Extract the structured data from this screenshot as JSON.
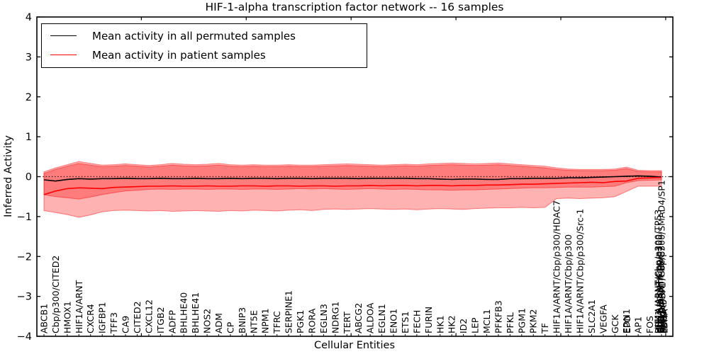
{
  "figure": {
    "title": "HIF-1-alpha transcription factor network -- 16 samples"
  },
  "axes": {
    "xlabel": "Cellular Entities",
    "ylabel": "Inferred Activity",
    "ylim": [
      -4,
      4
    ],
    "yticks": [
      "4",
      "3",
      "2",
      "1",
      "0",
      "−1",
      "−2",
      "−3",
      "−4"
    ],
    "ytick_values": [
      4,
      3,
      2,
      1,
      0,
      -1,
      -2,
      -3,
      -4
    ],
    "zero_line": "dotted"
  },
  "legend": {
    "items": [
      {
        "label": "Mean activity in all permuted samples",
        "color": "#000000"
      },
      {
        "label": "Mean activity in patient samples",
        "color": "#ff0000"
      }
    ]
  },
  "chart_data": {
    "type": "line",
    "title": "HIF-1-alpha transcription factor network -- 16 samples",
    "xlabel": "Cellular Entities",
    "ylabel": "Inferred Activity",
    "ylim": [
      -4,
      4
    ],
    "grid": false,
    "legend_position": "upper left",
    "band_color": "#ff0000",
    "band_alpha": 0.3,
    "categories": [
      "ABCB1",
      "Cbp/p300/CITED2",
      "HMOX1",
      "HIF1A/ARNT",
      "CXCR4",
      "IGFBP1",
      "TFF3",
      "CA9",
      "CITED2",
      "CXCL12",
      "ITGB2",
      "ADFP",
      "BHLHE40",
      "BHLHE41",
      "NOS2",
      "ADM",
      "CP",
      "BNIP3",
      "NT5E",
      "NPM1",
      "TFRC",
      "SERPINE1",
      "PGK1",
      "RORA",
      "EGLN3",
      "NDRG1",
      "TERT",
      "ABCG2",
      "ALDOA",
      "EGLN1",
      "ENO1",
      "ETS1",
      "FECH",
      "FURIN",
      "HK1",
      "HK2",
      "ID2",
      "LEP",
      "MCL1",
      "PFKFB3",
      "PFKL",
      "PGM1",
      "PKM2",
      "TF",
      "HIF1A/ARNT/Cbp/p300/HDAC7",
      "HIF1A/ARNT/Cbp/p300",
      "HIF1A/ARNT/Cbp/p300/Src-1",
      "SLC2A1",
      "VEGFA",
      "GCK",
      "EDN1",
      "AP1",
      "FOS",
      "HIF1A/ARNT/Cbp/p300/SMAD4/SP1"
    ],
    "overlapping_labels": [
      {
        "slot": 50,
        "label": "EPO"
      },
      {
        "slot": 53,
        "labels": [
          "HIF1A/ARNT/Cbp/p300/TP53",
          "HIF1A/ARNT/Cbp/p300",
          "Cbp/p300/HIF1A",
          "HIF1A/ARNT/HDAC7",
          "SMAD4/SP1",
          "SLC2A3",
          "LDHA",
          "PDK1",
          "EGR1",
          "PAI1"
        ]
      }
    ],
    "series": [
      {
        "name": "Mean activity in all permuted samples",
        "color": "#000000",
        "values": [
          -0.08,
          -0.11,
          -0.07,
          -0.05,
          -0.06,
          -0.05,
          -0.05,
          -0.04,
          -0.05,
          -0.05,
          -0.04,
          -0.05,
          -0.05,
          -0.04,
          -0.05,
          -0.05,
          -0.04,
          -0.05,
          -0.04,
          -0.04,
          -0.05,
          -0.04,
          -0.04,
          -0.05,
          -0.04,
          -0.04,
          -0.04,
          -0.05,
          -0.04,
          -0.04,
          -0.04,
          -0.04,
          -0.05,
          -0.05,
          -0.06,
          -0.07,
          -0.06,
          -0.06,
          -0.07,
          -0.07,
          -0.05,
          -0.05,
          -0.04,
          -0.04,
          -0.04,
          -0.03,
          -0.03,
          -0.02,
          -0.01,
          0.0,
          0.01,
          0.02,
          0.01,
          -0.01
        ]
      },
      {
        "name": "Mean activity in patient samples",
        "color": "#ff0000",
        "values": [
          -0.45,
          -0.36,
          -0.3,
          -0.28,
          -0.29,
          -0.3,
          -0.27,
          -0.26,
          -0.25,
          -0.24,
          -0.24,
          -0.23,
          -0.24,
          -0.24,
          -0.23,
          -0.24,
          -0.24,
          -0.23,
          -0.23,
          -0.24,
          -0.23,
          -0.23,
          -0.24,
          -0.23,
          -0.23,
          -0.24,
          -0.23,
          -0.23,
          -0.22,
          -0.23,
          -0.22,
          -0.22,
          -0.23,
          -0.22,
          -0.22,
          -0.23,
          -0.22,
          -0.22,
          -0.21,
          -0.21,
          -0.2,
          -0.19,
          -0.19,
          -0.18,
          -0.17,
          -0.16,
          -0.15,
          -0.14,
          -0.15,
          -0.12,
          -0.11,
          -0.04,
          -0.03,
          -0.02
        ]
      }
    ],
    "bands": [
      {
        "name": "patient-std-band",
        "top": [
          0.12,
          0.22,
          0.3,
          0.38,
          0.33,
          0.29,
          0.3,
          0.32,
          0.3,
          0.28,
          0.3,
          0.33,
          0.31,
          0.3,
          0.31,
          0.33,
          0.3,
          0.29,
          0.3,
          0.29,
          0.29,
          0.3,
          0.29,
          0.29,
          0.3,
          0.31,
          0.32,
          0.31,
          0.3,
          0.29,
          0.3,
          0.31,
          0.3,
          0.32,
          0.33,
          0.34,
          0.33,
          0.32,
          0.33,
          0.34,
          0.32,
          0.3,
          0.28,
          0.26,
          0.22,
          0.19,
          0.18,
          0.18,
          0.18,
          0.19,
          0.24,
          0.16,
          0.15,
          0.15
        ],
        "bottom": [
          -0.85,
          -0.9,
          -0.95,
          -1.02,
          -0.96,
          -0.88,
          -0.85,
          -0.84,
          -0.85,
          -0.86,
          -0.85,
          -0.87,
          -0.86,
          -0.85,
          -0.86,
          -0.87,
          -0.85,
          -0.86,
          -0.84,
          -0.85,
          -0.86,
          -0.84,
          -0.83,
          -0.85,
          -0.82,
          -0.81,
          -0.82,
          -0.81,
          -0.8,
          -0.81,
          -0.82,
          -0.81,
          -0.83,
          -0.81,
          -0.8,
          -0.81,
          -0.82,
          -0.8,
          -0.79,
          -0.78,
          -0.78,
          -0.77,
          -0.78,
          -0.77,
          -0.55,
          -0.54,
          -0.55,
          -0.54,
          -0.53,
          -0.5,
          -0.37,
          -0.24,
          -0.24,
          -0.24
        ]
      },
      {
        "name": "permuted-std-band",
        "top": [
          0.08,
          0.18,
          0.26,
          0.33,
          0.29,
          0.25,
          0.26,
          0.28,
          0.26,
          0.24,
          0.26,
          0.29,
          0.27,
          0.26,
          0.27,
          0.29,
          0.26,
          0.25,
          0.26,
          0.25,
          0.25,
          0.26,
          0.25,
          0.25,
          0.26,
          0.27,
          0.28,
          0.27,
          0.26,
          0.25,
          0.26,
          0.27,
          0.26,
          0.28,
          0.29,
          0.3,
          0.29,
          0.28,
          0.29,
          0.3,
          0.28,
          0.26,
          0.24,
          0.22,
          0.18,
          0.16,
          0.15,
          0.15,
          0.15,
          0.16,
          0.2,
          0.13,
          0.12,
          0.12
        ],
        "bottom": [
          -0.45,
          -0.5,
          -0.53,
          -0.56,
          -0.51,
          -0.45,
          -0.4,
          -0.36,
          -0.34,
          -0.32,
          -0.31,
          -0.32,
          -0.31,
          -0.31,
          -0.32,
          -0.31,
          -0.31,
          -0.32,
          -0.31,
          -0.31,
          -0.32,
          -0.31,
          -0.3,
          -0.31,
          -0.3,
          -0.31,
          -0.32,
          -0.31,
          -0.3,
          -0.31,
          -0.32,
          -0.31,
          -0.32,
          -0.33,
          -0.33,
          -0.34,
          -0.33,
          -0.33,
          -0.32,
          -0.31,
          -0.3,
          -0.29,
          -0.28,
          -0.28,
          -0.27,
          -0.26,
          -0.26,
          -0.26,
          -0.25,
          -0.24,
          -0.15,
          -0.1,
          -0.09,
          -0.08
        ]
      }
    ]
  }
}
